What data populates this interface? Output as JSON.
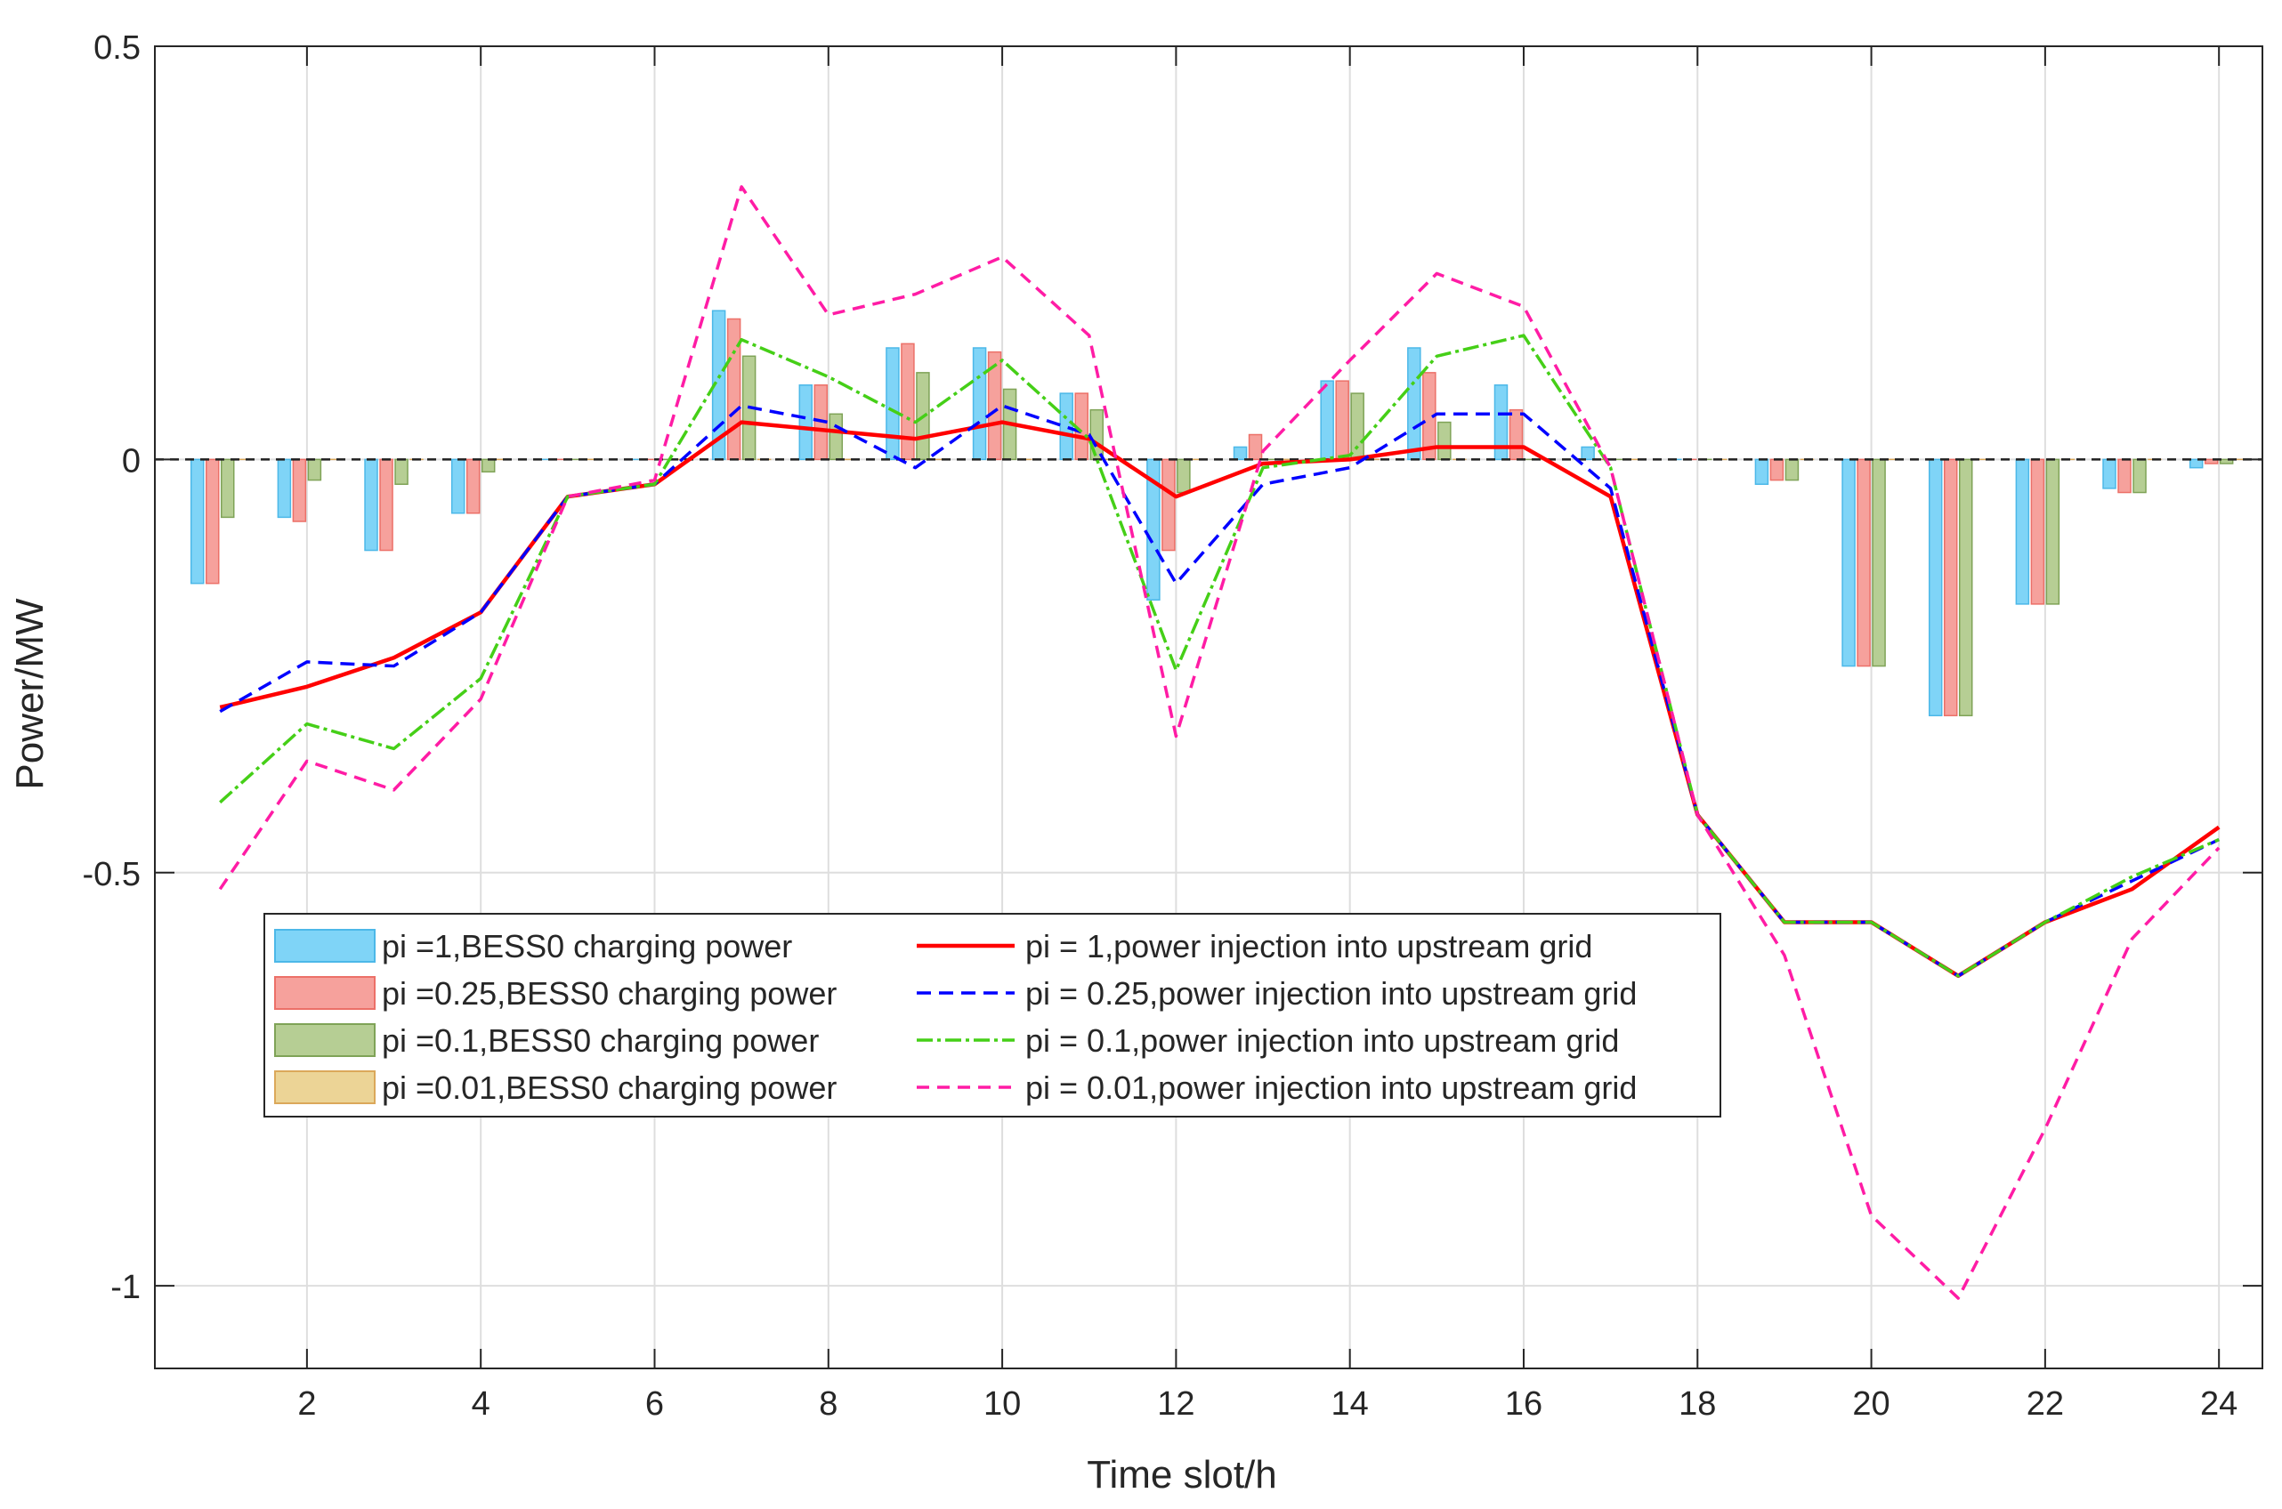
{
  "chart_data": {
    "type": "bar",
    "title": "",
    "xlabel": "Time slot/h",
    "ylabel": "Power/MW",
    "xlim": [
      0.25,
      24.5
    ],
    "ylim": [
      -1.1,
      0.5
    ],
    "grid": true,
    "legend_position": "lower-left",
    "x": [
      1,
      2,
      3,
      4,
      5,
      6,
      7,
      8,
      9,
      10,
      11,
      12,
      13,
      14,
      15,
      16,
      17,
      18,
      19,
      20,
      21,
      22,
      23,
      24
    ],
    "x_ticks": [
      2,
      4,
      6,
      8,
      10,
      12,
      14,
      16,
      18,
      20,
      22,
      24
    ],
    "y_ticks": [
      -1,
      -0.5,
      0,
      0.5
    ],
    "x_tick_labels": [
      "2",
      "4",
      "6",
      "8",
      "10",
      "12",
      "14",
      "16",
      "18",
      "20",
      "22",
      "24"
    ],
    "y_tick_labels": [
      "-1",
      "-0.5",
      "0",
      "0.5"
    ],
    "bar_series": [
      {
        "name": "pi =1,BESS0 charging power",
        "fill": "#7fd4f7",
        "edge": "#4cb8e8",
        "values": [
          -0.15,
          -0.07,
          -0.11,
          -0.065,
          0,
          0,
          0.18,
          0.09,
          0.135,
          0.135,
          0.08,
          -0.17,
          0.015,
          0.095,
          0.135,
          0.09,
          0.015,
          0,
          -0.03,
          -0.25,
          -0.31,
          -0.175,
          -0.035,
          -0.01
        ]
      },
      {
        "name": "pi =0.25,BESS0 charging power",
        "fill": "#f6a19c",
        "edge": "#ec7068",
        "values": [
          -0.15,
          -0.075,
          -0.11,
          -0.065,
          0,
          0,
          0.17,
          0.09,
          0.14,
          0.13,
          0.08,
          -0.11,
          0.03,
          0.095,
          0.105,
          0.06,
          0,
          0,
          -0.025,
          -0.25,
          -0.31,
          -0.175,
          -0.04,
          -0.005
        ]
      },
      {
        "name": "pi =0.1,BESS0 charging power",
        "fill": "#b6ce94",
        "edge": "#7fa357",
        "values": [
          -0.07,
          -0.025,
          -0.03,
          -0.015,
          0,
          0,
          0.125,
          0.055,
          0.105,
          0.085,
          0.06,
          -0.04,
          0,
          0.08,
          0.045,
          0,
          0,
          0,
          -0.025,
          -0.25,
          -0.31,
          -0.175,
          -0.04,
          -0.005
        ]
      },
      {
        "name": "pi =0.01,BESS0 charging power",
        "fill": "#ecd496",
        "edge": "#dba85a",
        "values": [
          0,
          0,
          0,
          0,
          0,
          0,
          0,
          0,
          0,
          0,
          0,
          0,
          0,
          0,
          0,
          0,
          0,
          0,
          0,
          0,
          0,
          0,
          0,
          0
        ]
      }
    ],
    "line_series": [
      {
        "name": "pi = 1,power injection into upstream grid",
        "color": "#ff0000",
        "dash": "",
        "values": [
          -0.3,
          -0.275,
          -0.24,
          -0.185,
          -0.045,
          -0.03,
          0.045,
          0.035,
          0.025,
          0.045,
          0.025,
          -0.045,
          -0.005,
          0,
          0.015,
          0.015,
          -0.045,
          -0.43,
          -0.56,
          -0.56,
          -0.625,
          -0.56,
          -0.52,
          -0.445
        ]
      },
      {
        "name": "pi = 0.25,power injection into upstream grid",
        "color": "#0000ff",
        "dash": "16,9",
        "values": [
          -0.305,
          -0.245,
          -0.25,
          -0.185,
          -0.045,
          -0.03,
          0.065,
          0.045,
          -0.01,
          0.065,
          0.03,
          -0.15,
          -0.03,
          -0.01,
          0.055,
          0.055,
          -0.035,
          -0.43,
          -0.56,
          -0.56,
          -0.625,
          -0.56,
          -0.51,
          -0.46
        ]
      },
      {
        "name": "pi = 0.1,power injection into upstream grid",
        "color": "#45cf17",
        "dash": "18,5,4,5",
        "values": [
          -0.415,
          -0.32,
          -0.35,
          -0.265,
          -0.045,
          -0.03,
          0.145,
          0.1,
          0.045,
          0.12,
          0.025,
          -0.255,
          -0.01,
          0.005,
          0.125,
          0.15,
          -0.01,
          -0.43,
          -0.56,
          -0.56,
          -0.625,
          -0.56,
          -0.505,
          -0.46
        ]
      },
      {
        "name": "pi = 0.01,power injection into upstream grid",
        "color": "#ff1ca5",
        "dash": "14,9",
        "values": [
          -0.52,
          -0.365,
          -0.4,
          -0.29,
          -0.045,
          -0.025,
          0.33,
          0.175,
          0.2,
          0.245,
          0.15,
          -0.335,
          0.01,
          0.12,
          0.225,
          0.185,
          -0.01,
          -0.43,
          -0.6,
          -0.915,
          -1.015,
          -0.81,
          -0.58,
          -0.47
        ]
      }
    ]
  }
}
